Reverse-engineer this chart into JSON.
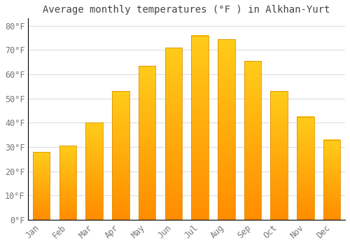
{
  "title": "Average monthly temperatures (°F ) in Alkhan-Yurt",
  "months": [
    "Jan",
    "Feb",
    "Mar",
    "Apr",
    "May",
    "Jun",
    "Jul",
    "Aug",
    "Sep",
    "Oct",
    "Nov",
    "Dec"
  ],
  "values": [
    28,
    30.5,
    40,
    53,
    63.5,
    71,
    76,
    74.5,
    65.5,
    53,
    42.5,
    33
  ],
  "bar_color_top": "#FFB300",
  "bar_color_bottom": "#FF8C00",
  "bar_edge_color": "#E09000",
  "background_color": "#ffffff",
  "plot_bg_color": "#ffffff",
  "grid_color": "#dddddd",
  "yticks": [
    0,
    10,
    20,
    30,
    40,
    50,
    60,
    70,
    80
  ],
  "ylim": [
    0,
    83
  ],
  "title_fontsize": 10,
  "tick_fontsize": 8.5,
  "tick_color": "#777777",
  "spine_color": "#000000"
}
